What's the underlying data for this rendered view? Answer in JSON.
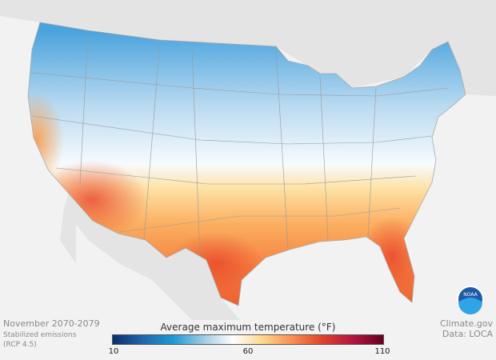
{
  "period": "November 2070-2079",
  "scenario": [
    "Stabilized emissions",
    "(RCP 4.5)"
  ],
  "source": [
    "Climate.gov",
    "Data: LOCA"
  ],
  "legend": {
    "title": "Average maximum temperature (°F)",
    "min": 10,
    "mid": 60,
    "max": 110,
    "ticks": [
      "10",
      "60",
      "110"
    ],
    "colors": [
      "#08306b",
      "#2166ac",
      "#1a9ad6",
      "#9ecae1",
      "#ffffff",
      "#fdd78a",
      "#f98c4e",
      "#e0402a",
      "#b3143f",
      "#67001f"
    ]
  },
  "logo": "NOAA",
  "colors": {
    "background": "#f2f2f2",
    "land": "#e2e2e2",
    "cold": "#3b9ede",
    "warm": "#f26b3a"
  }
}
